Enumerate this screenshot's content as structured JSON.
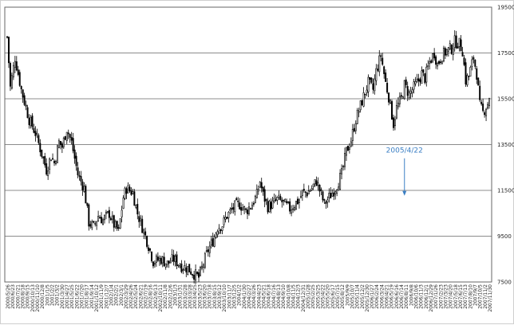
{
  "chart_data": {
    "type": "candlestick",
    "title": "",
    "xlabel": "",
    "ylabel": "",
    "ylim": [
      7500,
      19500
    ],
    "y_ticks": [
      7500,
      9500,
      11500,
      13500,
      15500,
      17500,
      19500
    ],
    "grid": "horizontal",
    "up_color": "#ffffff",
    "down_color": "#000000",
    "annotation": {
      "label": "2005/4/22",
      "x_index": 253,
      "value": 11300,
      "color": "#3b7fc4"
    },
    "x_tick_labels": [
      "2000/5/26",
      "2000/6/23",
      "2000/7/21",
      "2000/8/18",
      "2000/9/15",
      "2000/10/13",
      "2000/11/10",
      "2000/12/8",
      "2001/1/5",
      "2001/2/2",
      "2001/3/2",
      "2001/3/30",
      "2001/4/27",
      "2001/5/25",
      "2001/6/22",
      "2001/7/20",
      "2001/8/17",
      "2001/9/14",
      "2001/10/12",
      "2001/11/9",
      "2001/12/7",
      "2002/1/4",
      "2002/2/1",
      "2002/3/1",
      "2002/3/29",
      "2002/4/26",
      "2002/5/24",
      "2002/6/21",
      "2002/7/19",
      "2002/8/16",
      "2002/9/13",
      "2002/10/11",
      "2002/11/8",
      "2002/12/6",
      "2003/1/3",
      "2003/1/31",
      "2003/2/28",
      "2003/3/28",
      "2003/4/25",
      "2003/5/23",
      "2003/6/20",
      "2003/7/18",
      "2003/8/15",
      "2003/9/12",
      "2003/10/10",
      "2003/11/7",
      "2003/12/5",
      "2004/1/2",
      "2004/1/30",
      "2004/2/27",
      "2004/3/26",
      "2004/4/23",
      "2004/5/21",
      "2004/6/18",
      "2004/7/16",
      "2004/8/13",
      "2004/9/10",
      "2004/10/8",
      "2004/11/5",
      "2004/12/3",
      "2004/12/31",
      "2005/1/28",
      "2005/2/25",
      "2005/3/25",
      "2005/4/22",
      "2005/5/20",
      "2005/6/17",
      "2005/7/15",
      "2005/8/12",
      "2005/9/9",
      "2005/10/7",
      "2005/11/4",
      "2005/12/2",
      "2005/12/30",
      "2006/1/27",
      "2006/2/24",
      "2006/3/24",
      "2006/4/21",
      "2006/5/19",
      "2006/6/16",
      "2006/7/14",
      "2006/8/11",
      "2006/9/8",
      "2006/10/6",
      "2006/11/3",
      "2006/12/1",
      "2006/12/29",
      "2007/1/26",
      "2007/2/23",
      "2007/3/23",
      "2007/4/20",
      "2007/5/18",
      "2007/6/15",
      "2007/7/13",
      "2007/8/10",
      "2007/9/7",
      "2007/10/5",
      "2007/11/2",
      "2007/11/30"
    ],
    "close_path": [
      [
        0,
        18200
      ],
      [
        4,
        16000
      ],
      [
        10,
        17300
      ],
      [
        18,
        15900
      ],
      [
        28,
        14600
      ],
      [
        36,
        14000
      ],
      [
        44,
        13100
      ],
      [
        50,
        12400
      ],
      [
        56,
        13000
      ],
      [
        60,
        12700
      ],
      [
        66,
        13600
      ],
      [
        70,
        13400
      ],
      [
        76,
        14200
      ],
      [
        82,
        13600
      ],
      [
        90,
        12200
      ],
      [
        98,
        11600
      ],
      [
        104,
        10100
      ],
      [
        110,
        9900
      ],
      [
        116,
        10400
      ],
      [
        122,
        10200
      ],
      [
        130,
        10500
      ],
      [
        136,
        10000
      ],
      [
        142,
        9700
      ],
      [
        148,
        11200
      ],
      [
        152,
        11600
      ],
      [
        160,
        11400
      ],
      [
        166,
        10500
      ],
      [
        172,
        9900
      ],
      [
        180,
        9100
      ],
      [
        186,
        8400
      ],
      [
        196,
        8500
      ],
      [
        204,
        8300
      ],
      [
        212,
        8500
      ],
      [
        222,
        8200
      ],
      [
        230,
        8100
      ],
      [
        240,
        7800
      ],
      [
        244,
        7700
      ],
      [
        248,
        8100
      ],
      [
        256,
        8900
      ],
      [
        262,
        9300
      ],
      [
        268,
        9900
      ],
      [
        274,
        10000
      ],
      [
        280,
        10400
      ],
      [
        290,
        10800
      ],
      [
        296,
        10900
      ],
      [
        304,
        10600
      ],
      [
        312,
        10900
      ],
      [
        318,
        11300
      ],
      [
        322,
        11900
      ],
      [
        326,
        11300
      ],
      [
        332,
        10800
      ],
      [
        338,
        10900
      ],
      [
        344,
        11100
      ],
      [
        350,
        11000
      ],
      [
        356,
        10800
      ],
      [
        360,
        10700
      ],
      [
        366,
        10900
      ],
      [
        372,
        11100
      ],
      [
        376,
        11400
      ],
      [
        382,
        11400
      ],
      [
        388,
        11600
      ],
      [
        394,
        11900
      ],
      [
        400,
        11300
      ],
      [
        404,
        10900
      ],
      [
        410,
        11200
      ],
      [
        418,
        11600
      ],
      [
        426,
        12200
      ],
      [
        432,
        13200
      ],
      [
        438,
        13700
      ],
      [
        444,
        14600
      ],
      [
        450,
        15200
      ],
      [
        456,
        15800
      ],
      [
        460,
        16200
      ],
      [
        466,
        15900
      ],
      [
        470,
        16700
      ],
      [
        476,
        17400
      ],
      [
        482,
        16200
      ],
      [
        486,
        15600
      ],
      [
        492,
        14400
      ],
      [
        496,
        15100
      ],
      [
        502,
        15500
      ],
      [
        506,
        16100
      ],
      [
        512,
        15700
      ],
      [
        518,
        16000
      ],
      [
        524,
        16300
      ],
      [
        528,
        16600
      ],
      [
        532,
        16400
      ],
      [
        538,
        17100
      ],
      [
        544,
        17500
      ],
      [
        548,
        17000
      ],
      [
        554,
        17400
      ],
      [
        560,
        17600
      ],
      [
        566,
        17700
      ],
      [
        570,
        18000
      ],
      [
        576,
        17900
      ],
      [
        580,
        17600
      ],
      [
        584,
        16300
      ],
      [
        588,
        16500
      ],
      [
        594,
        17300
      ],
      [
        598,
        16600
      ],
      [
        602,
        15200
      ],
      [
        606,
        14900
      ],
      [
        612,
        15300
      ],
      [
        614,
        15600
      ]
    ],
    "n_bars": 308
  }
}
